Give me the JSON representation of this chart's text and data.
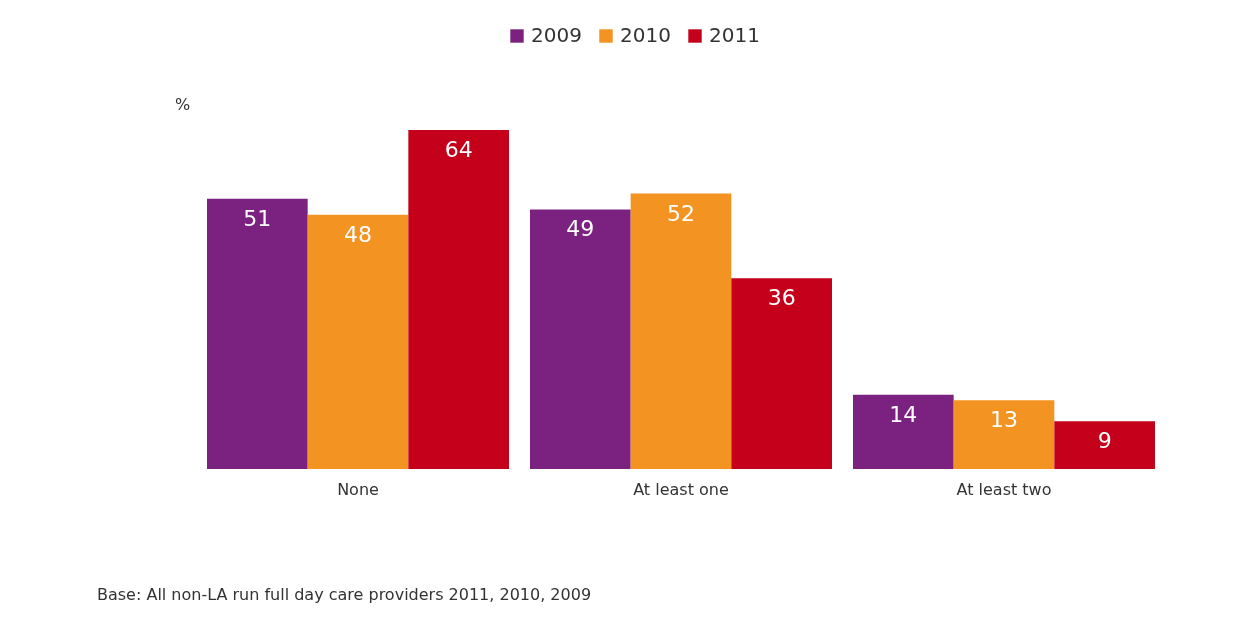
{
  "chart_data": {
    "type": "bar",
    "ylabel": "%",
    "categories": [
      "None",
      "At least one",
      "At least two"
    ],
    "series": [
      {
        "name": "2009",
        "color": "#7b2281",
        "values": [
          51,
          49,
          14
        ]
      },
      {
        "name": "2010",
        "color": "#f39322",
        "values": [
          48,
          52,
          13
        ]
      },
      {
        "name": "2011",
        "color": "#c5001a",
        "values": [
          64,
          36,
          9
        ]
      }
    ],
    "data_labels": true,
    "legend": "top",
    "annotations": [
      "Base: All non-LA run full day care providers 2011, 2010, 2009"
    ]
  }
}
